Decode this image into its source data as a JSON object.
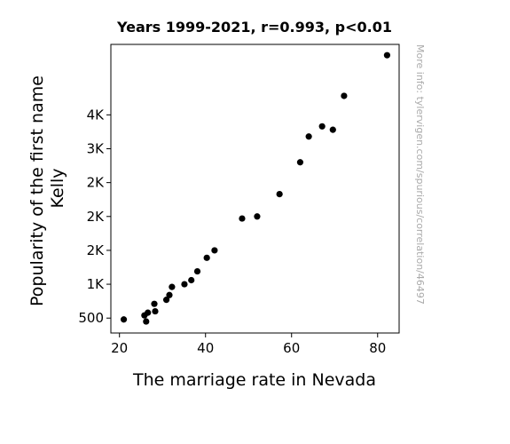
{
  "chart_data": {
    "type": "scatter",
    "title": "Years 1999-2021, r=0.993, p<0.01",
    "xlabel": "The marriage rate in Nevada",
    "ylabel_lines": [
      "Popularity of the first name",
      "Kelly"
    ],
    "watermark": "More info: tylervigen.com/spurious/correlation/46497",
    "xlim": [
      18,
      85
    ],
    "ylim": [
      280,
      4540
    ],
    "x_ticks": [
      {
        "value": 20,
        "label": "20"
      },
      {
        "value": 40,
        "label": "40"
      },
      {
        "value": 60,
        "label": "60"
      },
      {
        "value": 80,
        "label": "80"
      }
    ],
    "y_ticks": [
      {
        "value": 500,
        "label": "500"
      },
      {
        "value": 1000,
        "label": "1K"
      },
      {
        "value": 1500,
        "label": "2K"
      },
      {
        "value": 2000,
        "label": "2K"
      },
      {
        "value": 2500,
        "label": "2K"
      },
      {
        "value": 3000,
        "label": "3K"
      },
      {
        "value": 3500,
        "label": "4K"
      }
    ],
    "grid": false,
    "marker_color": "#000000",
    "points": [
      {
        "x": 21.0,
        "y": 480
      },
      {
        "x": 25.8,
        "y": 540
      },
      {
        "x": 26.2,
        "y": 450
      },
      {
        "x": 26.6,
        "y": 580
      },
      {
        "x": 28.1,
        "y": 710
      },
      {
        "x": 28.3,
        "y": 600
      },
      {
        "x": 30.9,
        "y": 770
      },
      {
        "x": 31.6,
        "y": 840
      },
      {
        "x": 32.2,
        "y": 960
      },
      {
        "x": 35.1,
        "y": 1000
      },
      {
        "x": 36.7,
        "y": 1060
      },
      {
        "x": 38.1,
        "y": 1190
      },
      {
        "x": 40.3,
        "y": 1390
      },
      {
        "x": 42.1,
        "y": 1500
      },
      {
        "x": 48.5,
        "y": 1970
      },
      {
        "x": 52.0,
        "y": 2000
      },
      {
        "x": 57.2,
        "y": 2330
      },
      {
        "x": 62.0,
        "y": 2800
      },
      {
        "x": 64.0,
        "y": 3180
      },
      {
        "x": 67.1,
        "y": 3330
      },
      {
        "x": 69.6,
        "y": 3280
      },
      {
        "x": 72.2,
        "y": 3780
      },
      {
        "x": 82.2,
        "y": 4380
      }
    ]
  }
}
